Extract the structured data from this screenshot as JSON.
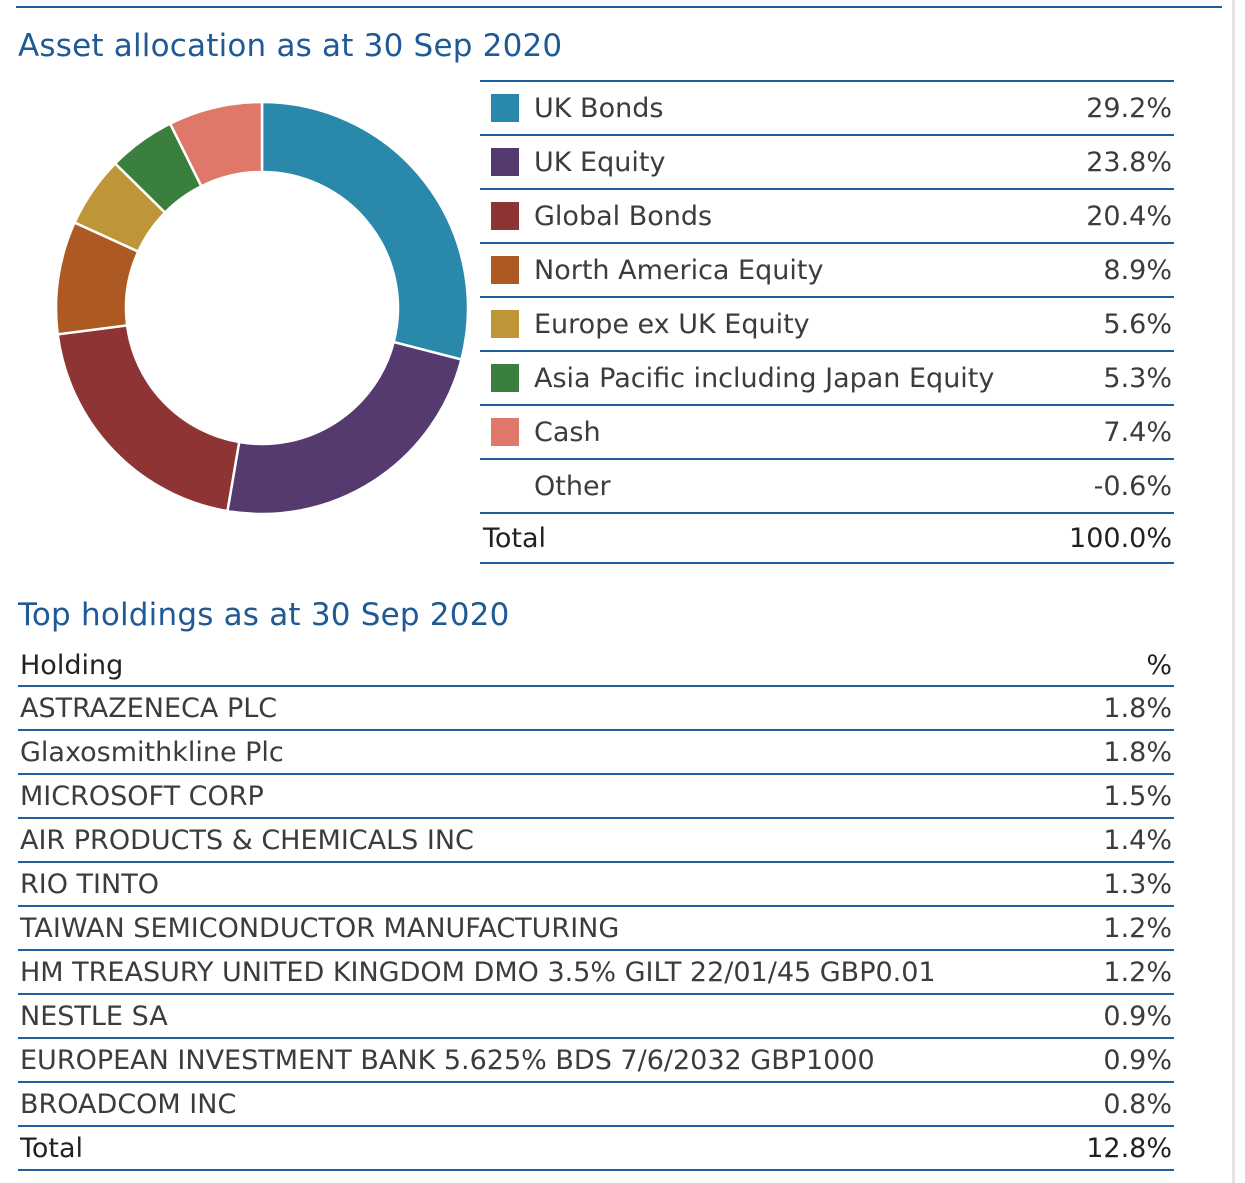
{
  "allocation": {
    "title": "Asset allocation as at 30 Sep 2020",
    "rows": [
      {
        "label": "UK Bonds",
        "value": "29.2%",
        "color": "#2a88aa"
      },
      {
        "label": "UK Equity",
        "value": "23.8%",
        "color": "#553a70"
      },
      {
        "label": "Global Bonds",
        "value": "20.4%",
        "color": "#8e3434"
      },
      {
        "label": "North America Equity",
        "value": "8.9%",
        "color": "#ad5a22"
      },
      {
        "label": "Europe ex UK Equity",
        "value": "5.6%",
        "color": "#bf9637"
      },
      {
        "label": "Asia Pacific including Japan Equity",
        "value": "5.3%",
        "color": "#3b7f3e"
      },
      {
        "label": "Cash",
        "value": "7.4%",
        "color": "#e0786a"
      },
      {
        "label": "Other",
        "value": "-0.6%",
        "color": ""
      }
    ],
    "total_label": "Total",
    "total_value": "100.0%"
  },
  "chart_data": {
    "type": "pie",
    "categories": [
      "UK Bonds",
      "UK Equity",
      "Global Bonds",
      "North America Equity",
      "Europe ex UK Equity",
      "Asia Pacific including Japan Equity",
      "Cash",
      "Other"
    ],
    "values": [
      29.2,
      23.8,
      20.4,
      8.9,
      5.6,
      5.3,
      7.4,
      -0.6
    ],
    "colors": [
      "#2a88aa",
      "#553a70",
      "#8e3434",
      "#ad5a22",
      "#bf9637",
      "#3b7f3e",
      "#e0786a",
      ""
    ],
    "title": "Asset allocation as at 30 Sep 2020",
    "donut": true,
    "legend": "right"
  },
  "holdings": {
    "title": "Top holdings as at 30 Sep 2020",
    "header_name": "Holding",
    "header_pct": "%",
    "rows": [
      {
        "name": "ASTRAZENECA PLC",
        "pct": "1.8%"
      },
      {
        "name": "Glaxosmithkline Plc",
        "pct": "1.8%"
      },
      {
        "name": "MICROSOFT CORP",
        "pct": "1.5%"
      },
      {
        "name": "AIR PRODUCTS & CHEMICALS INC",
        "pct": "1.4%"
      },
      {
        "name": "RIO TINTO",
        "pct": "1.3%"
      },
      {
        "name": "TAIWAN SEMICONDUCTOR MANUFACTURING",
        "pct": "1.2%"
      },
      {
        "name": "HM TREASURY UNITED KINGDOM DMO 3.5% GILT 22/01/45 GBP0.01",
        "pct": "1.2%"
      },
      {
        "name": "NESTLE SA",
        "pct": "0.9%"
      },
      {
        "name": "EUROPEAN INVESTMENT BANK 5.625% BDS 7/6/2032 GBP1000",
        "pct": "0.9%"
      },
      {
        "name": "BROADCOM INC",
        "pct": "0.8%"
      }
    ],
    "total_label": "Total",
    "total_pct": "12.8%"
  }
}
